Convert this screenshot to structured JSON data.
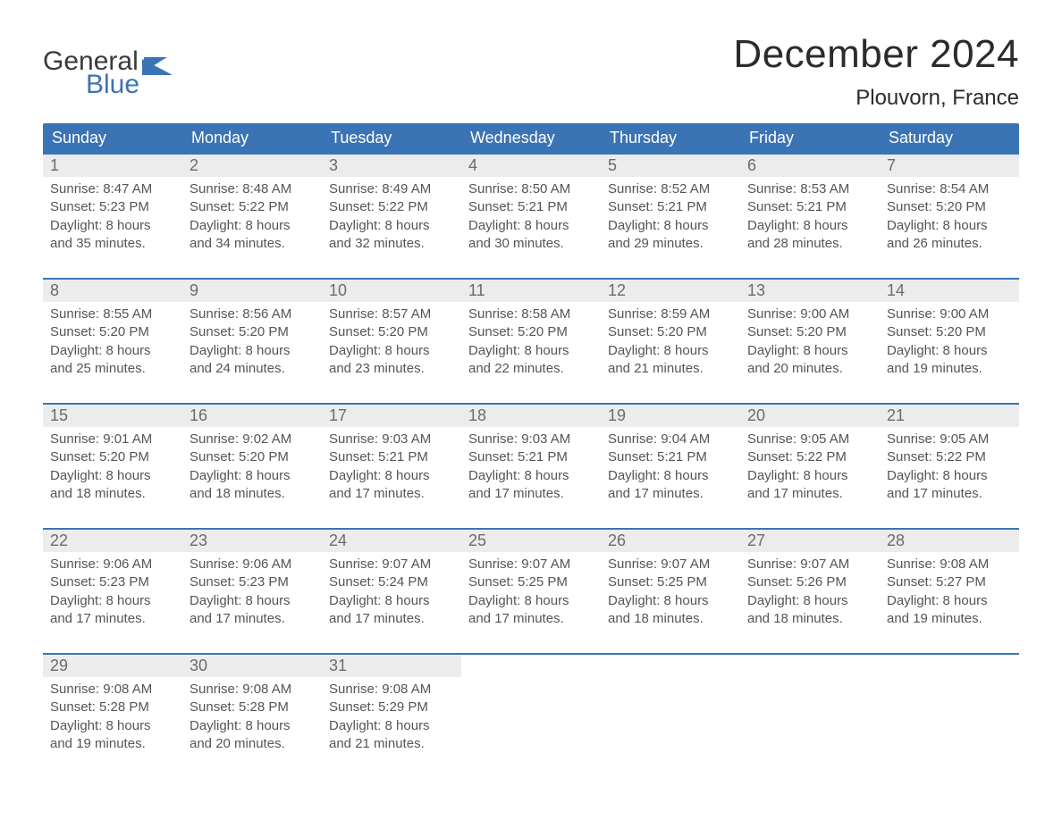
{
  "logo": {
    "word1": "General",
    "word2": "Blue"
  },
  "title": "December 2024",
  "subtitle": "Plouvorn, France",
  "colors": {
    "accent": "#3b74b4",
    "header_bg": "#3b74b4",
    "daynum_bg": "#ececec",
    "text": "#333333",
    "text_light": "#555555",
    "page_bg": "#ffffff",
    "week_border": "#3b74b4"
  },
  "weekdays": [
    "Sunday",
    "Monday",
    "Tuesday",
    "Wednesday",
    "Thursday",
    "Friday",
    "Saturday"
  ],
  "labels": {
    "sunrise": "Sunrise",
    "sunset": "Sunset",
    "daylight": "Daylight"
  },
  "weeks": [
    [
      {
        "day": 1,
        "sunrise": "8:47 AM",
        "sunset": "5:23 PM",
        "daylight_hours": 8,
        "daylight_minutes": 35
      },
      {
        "day": 2,
        "sunrise": "8:48 AM",
        "sunset": "5:22 PM",
        "daylight_hours": 8,
        "daylight_minutes": 34
      },
      {
        "day": 3,
        "sunrise": "8:49 AM",
        "sunset": "5:22 PM",
        "daylight_hours": 8,
        "daylight_minutes": 32
      },
      {
        "day": 4,
        "sunrise": "8:50 AM",
        "sunset": "5:21 PM",
        "daylight_hours": 8,
        "daylight_minutes": 30
      },
      {
        "day": 5,
        "sunrise": "8:52 AM",
        "sunset": "5:21 PM",
        "daylight_hours": 8,
        "daylight_minutes": 29
      },
      {
        "day": 6,
        "sunrise": "8:53 AM",
        "sunset": "5:21 PM",
        "daylight_hours": 8,
        "daylight_minutes": 28
      },
      {
        "day": 7,
        "sunrise": "8:54 AM",
        "sunset": "5:20 PM",
        "daylight_hours": 8,
        "daylight_minutes": 26
      }
    ],
    [
      {
        "day": 8,
        "sunrise": "8:55 AM",
        "sunset": "5:20 PM",
        "daylight_hours": 8,
        "daylight_minutes": 25
      },
      {
        "day": 9,
        "sunrise": "8:56 AM",
        "sunset": "5:20 PM",
        "daylight_hours": 8,
        "daylight_minutes": 24
      },
      {
        "day": 10,
        "sunrise": "8:57 AM",
        "sunset": "5:20 PM",
        "daylight_hours": 8,
        "daylight_minutes": 23
      },
      {
        "day": 11,
        "sunrise": "8:58 AM",
        "sunset": "5:20 PM",
        "daylight_hours": 8,
        "daylight_minutes": 22
      },
      {
        "day": 12,
        "sunrise": "8:59 AM",
        "sunset": "5:20 PM",
        "daylight_hours": 8,
        "daylight_minutes": 21
      },
      {
        "day": 13,
        "sunrise": "9:00 AM",
        "sunset": "5:20 PM",
        "daylight_hours": 8,
        "daylight_minutes": 20
      },
      {
        "day": 14,
        "sunrise": "9:00 AM",
        "sunset": "5:20 PM",
        "daylight_hours": 8,
        "daylight_minutes": 19
      }
    ],
    [
      {
        "day": 15,
        "sunrise": "9:01 AM",
        "sunset": "5:20 PM",
        "daylight_hours": 8,
        "daylight_minutes": 18
      },
      {
        "day": 16,
        "sunrise": "9:02 AM",
        "sunset": "5:20 PM",
        "daylight_hours": 8,
        "daylight_minutes": 18
      },
      {
        "day": 17,
        "sunrise": "9:03 AM",
        "sunset": "5:21 PM",
        "daylight_hours": 8,
        "daylight_minutes": 17
      },
      {
        "day": 18,
        "sunrise": "9:03 AM",
        "sunset": "5:21 PM",
        "daylight_hours": 8,
        "daylight_minutes": 17
      },
      {
        "day": 19,
        "sunrise": "9:04 AM",
        "sunset": "5:21 PM",
        "daylight_hours": 8,
        "daylight_minutes": 17
      },
      {
        "day": 20,
        "sunrise": "9:05 AM",
        "sunset": "5:22 PM",
        "daylight_hours": 8,
        "daylight_minutes": 17
      },
      {
        "day": 21,
        "sunrise": "9:05 AM",
        "sunset": "5:22 PM",
        "daylight_hours": 8,
        "daylight_minutes": 17
      }
    ],
    [
      {
        "day": 22,
        "sunrise": "9:06 AM",
        "sunset": "5:23 PM",
        "daylight_hours": 8,
        "daylight_minutes": 17
      },
      {
        "day": 23,
        "sunrise": "9:06 AM",
        "sunset": "5:23 PM",
        "daylight_hours": 8,
        "daylight_minutes": 17
      },
      {
        "day": 24,
        "sunrise": "9:07 AM",
        "sunset": "5:24 PM",
        "daylight_hours": 8,
        "daylight_minutes": 17
      },
      {
        "day": 25,
        "sunrise": "9:07 AM",
        "sunset": "5:25 PM",
        "daylight_hours": 8,
        "daylight_minutes": 17
      },
      {
        "day": 26,
        "sunrise": "9:07 AM",
        "sunset": "5:25 PM",
        "daylight_hours": 8,
        "daylight_minutes": 18
      },
      {
        "day": 27,
        "sunrise": "9:07 AM",
        "sunset": "5:26 PM",
        "daylight_hours": 8,
        "daylight_minutes": 18
      },
      {
        "day": 28,
        "sunrise": "9:08 AM",
        "sunset": "5:27 PM",
        "daylight_hours": 8,
        "daylight_minutes": 19
      }
    ],
    [
      {
        "day": 29,
        "sunrise": "9:08 AM",
        "sunset": "5:28 PM",
        "daylight_hours": 8,
        "daylight_minutes": 19
      },
      {
        "day": 30,
        "sunrise": "9:08 AM",
        "sunset": "5:28 PM",
        "daylight_hours": 8,
        "daylight_minutes": 20
      },
      {
        "day": 31,
        "sunrise": "9:08 AM",
        "sunset": "5:29 PM",
        "daylight_hours": 8,
        "daylight_minutes": 21
      },
      null,
      null,
      null,
      null
    ]
  ]
}
